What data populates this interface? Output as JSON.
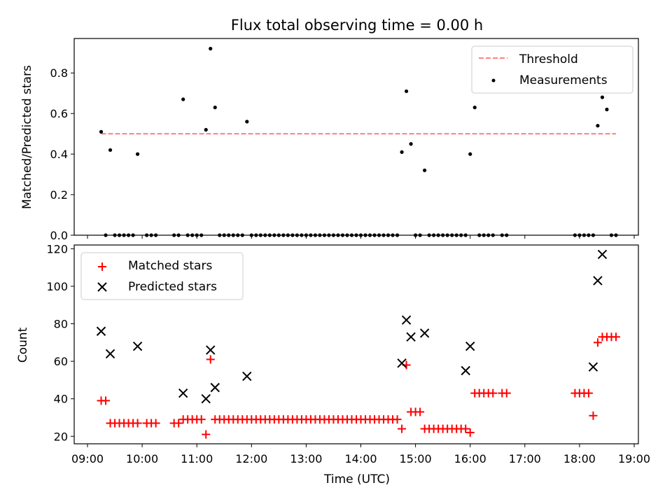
{
  "chart_data": [
    {
      "type": "scatter",
      "title": "Flux total observing time = 0.00 h",
      "ylabel": "Matched/Predicted stars",
      "xlabel": "",
      "xlim": [
        "09:00",
        "19:00"
      ],
      "ylim": [
        0,
        0.97
      ],
      "yticks": [
        "0.0",
        "0.2",
        "0.4",
        "0.6",
        "0.8"
      ],
      "legend_position": "upper right",
      "series": [
        {
          "name": "Threshold",
          "kind": "dashed-line",
          "color": "#ff8080",
          "x": [
            "09:15",
            "18:40"
          ],
          "y": [
            0.5,
            0.5
          ]
        },
        {
          "name": "Measurements",
          "kind": "dots",
          "color": "#000000",
          "x": [
            "09:15",
            "09:20",
            "09:25",
            "09:30",
            "09:35",
            "09:40",
            "09:45",
            "09:50",
            "09:55",
            "10:05",
            "10:10",
            "10:15",
            "10:35",
            "10:40",
            "10:45",
            "10:50",
            "10:55",
            "11:00",
            "11:05",
            "11:10",
            "11:15",
            "11:20",
            "11:25",
            "11:30",
            "11:35",
            "11:40",
            "11:45",
            "11:50",
            "11:55",
            "12:00",
            "12:05",
            "12:10",
            "12:15",
            "12:20",
            "12:25",
            "12:30",
            "12:35",
            "12:40",
            "12:45",
            "12:50",
            "12:55",
            "13:00",
            "13:05",
            "13:10",
            "13:15",
            "13:20",
            "13:25",
            "13:30",
            "13:35",
            "13:40",
            "13:45",
            "13:50",
            "13:55",
            "14:00",
            "14:05",
            "14:10",
            "14:15",
            "14:20",
            "14:25",
            "14:30",
            "14:35",
            "14:40",
            "14:45",
            "14:50",
            "14:55",
            "15:00",
            "15:05",
            "15:10",
            "15:15",
            "15:20",
            "15:25",
            "15:30",
            "15:35",
            "15:40",
            "15:45",
            "15:50",
            "15:55",
            "16:00",
            "16:05",
            "16:10",
            "16:15",
            "16:20",
            "16:25",
            "16:35",
            "16:40",
            "17:55",
            "18:00",
            "18:05",
            "18:10",
            "18:15",
            "18:20",
            "18:25",
            "18:30",
            "18:35",
            "18:40"
          ],
          "y": [
            0.51,
            0.0,
            0.42,
            0.0,
            0.0,
            0.0,
            0.0,
            0.0,
            0.4,
            0.0,
            0.0,
            0.0,
            0.0,
            0.0,
            0.67,
            0.0,
            0.0,
            0.0,
            0.0,
            0.52,
            0.92,
            0.63,
            0.0,
            0.0,
            0.0,
            0.0,
            0.0,
            0.0,
            0.56,
            0.0,
            0.0,
            0.0,
            0.0,
            0.0,
            0.0,
            0.0,
            0.0,
            0.0,
            0.0,
            0.0,
            0.0,
            0.0,
            0.0,
            0.0,
            0.0,
            0.0,
            0.0,
            0.0,
            0.0,
            0.0,
            0.0,
            0.0,
            0.0,
            0.0,
            0.0,
            0.0,
            0.0,
            0.0,
            0.0,
            0.0,
            0.0,
            0.0,
            0.41,
            0.71,
            0.45,
            0.0,
            0.0,
            0.32,
            0.0,
            0.0,
            0.0,
            0.0,
            0.0,
            0.0,
            0.0,
            0.0,
            0.0,
            0.4,
            0.63,
            0.0,
            0.0,
            0.0,
            0.0,
            0.0,
            0.0,
            0.0,
            0.0,
            0.0,
            0.0,
            0.0,
            0.54,
            0.68,
            0.62,
            0.0,
            0.0
          ]
        }
      ]
    },
    {
      "type": "scatter",
      "title": "",
      "ylabel": "Count",
      "xlabel": "Time (UTC)",
      "xlim": [
        "09:00",
        "19:00"
      ],
      "xticks": [
        "09:00",
        "10:00",
        "11:00",
        "12:00",
        "13:00",
        "14:00",
        "15:00",
        "16:00",
        "17:00",
        "18:00",
        "19:00"
      ],
      "ylim": [
        16,
        122
      ],
      "yticks": [
        "20",
        "40",
        "60",
        "80",
        "100",
        "120"
      ],
      "legend_position": "upper left",
      "series": [
        {
          "name": "Matched stars",
          "marker": "+",
          "color": "#ff0000",
          "x": [
            "09:15",
            "09:20",
            "09:25",
            "09:30",
            "09:35",
            "09:40",
            "09:45",
            "09:50",
            "09:55",
            "10:05",
            "10:10",
            "10:15",
            "10:35",
            "10:40",
            "10:45",
            "10:50",
            "10:55",
            "11:00",
            "11:05",
            "11:10",
            "11:15",
            "11:20",
            "11:25",
            "11:30",
            "11:35",
            "11:40",
            "11:45",
            "11:50",
            "11:55",
            "12:00",
            "12:05",
            "12:10",
            "12:15",
            "12:20",
            "12:25",
            "12:30",
            "12:35",
            "12:40",
            "12:45",
            "12:50",
            "12:55",
            "13:00",
            "13:05",
            "13:10",
            "13:15",
            "13:20",
            "13:25",
            "13:30",
            "13:35",
            "13:40",
            "13:45",
            "13:50",
            "13:55",
            "14:00",
            "14:05",
            "14:10",
            "14:15",
            "14:20",
            "14:25",
            "14:30",
            "14:35",
            "14:40",
            "14:45",
            "14:50",
            "14:55",
            "15:00",
            "15:05",
            "15:10",
            "15:15",
            "15:20",
            "15:25",
            "15:30",
            "15:35",
            "15:40",
            "15:45",
            "15:50",
            "15:55",
            "16:00",
            "16:05",
            "16:10",
            "16:15",
            "16:20",
            "16:25",
            "16:35",
            "16:40",
            "17:55",
            "18:00",
            "18:05",
            "18:10",
            "18:15",
            "18:20",
            "18:25",
            "18:30",
            "18:35",
            "18:40"
          ],
          "y": [
            39,
            39,
            27,
            27,
            27,
            27,
            27,
            27,
            27,
            27,
            27,
            27,
            27,
            27,
            29,
            29,
            29,
            29,
            29,
            21,
            61,
            29,
            29,
            29,
            29,
            29,
            29,
            29,
            29,
            29,
            29,
            29,
            29,
            29,
            29,
            29,
            29,
            29,
            29,
            29,
            29,
            29,
            29,
            29,
            29,
            29,
            29,
            29,
            29,
            29,
            29,
            29,
            29,
            29,
            29,
            29,
            29,
            29,
            29,
            29,
            29,
            29,
            24,
            58,
            33,
            33,
            33,
            24,
            24,
            24,
            24,
            24,
            24,
            24,
            24,
            24,
            24,
            22,
            43,
            43,
            43,
            43,
            43,
            43,
            43,
            43,
            43,
            43,
            43,
            31,
            70,
            73,
            73,
            73,
            73
          ]
        },
        {
          "name": "Predicted stars",
          "marker": "x",
          "color": "#000000",
          "x": [
            "09:15",
            "09:25",
            "09:55",
            "10:45",
            "11:10",
            "11:15",
            "11:20",
            "11:55",
            "14:45",
            "14:50",
            "14:55",
            "15:10",
            "15:55",
            "16:00",
            "18:15",
            "18:20",
            "18:25"
          ],
          "y": [
            76,
            64,
            68,
            43,
            40,
            66,
            46,
            52,
            59,
            82,
            73,
            75,
            55,
            68,
            57,
            103,
            117
          ]
        }
      ]
    }
  ]
}
